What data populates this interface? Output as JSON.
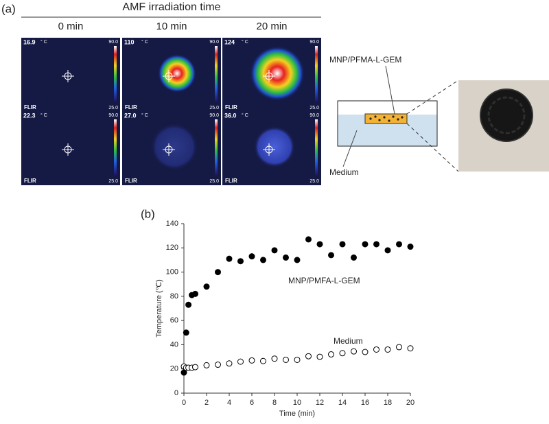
{
  "panel_a": {
    "label": "(a)",
    "header": "AMF irradiation time",
    "columns": [
      "0 min",
      "10 min",
      "20 min"
    ],
    "readings": [
      [
        "16.9",
        "110",
        "124"
      ],
      [
        "22.3",
        "27.0",
        "36.0"
      ]
    ],
    "unit": "° C",
    "scale_max": "90.0",
    "scale_min": "25.0",
    "brand": "FLIR",
    "sample_label": "MNP/PFMA-L-GEM",
    "medium_label": "Medium"
  },
  "chart_data": {
    "type": "scatter",
    "title": "(b)",
    "x_label": "Time (min)",
    "y_label": "Temperature (℃)",
    "xlim": [
      0,
      20
    ],
    "xticks": [
      0,
      2,
      4,
      6,
      8,
      10,
      12,
      14,
      16,
      18,
      20
    ],
    "ylim": [
      0,
      140
    ],
    "yticks": [
      0,
      20,
      40,
      60,
      80,
      100,
      120,
      140
    ],
    "series": [
      {
        "name": "MNP/PMFA-L-GEM",
        "color": "#000000",
        "marker": "filled",
        "x": [
          0,
          0.2,
          0.4,
          0.7,
          1,
          2,
          3,
          4,
          5,
          6,
          7,
          8,
          9,
          10,
          11,
          12,
          13,
          14,
          15,
          16,
          17,
          18,
          19,
          20
        ],
        "values": [
          17,
          50,
          73,
          81,
          82,
          88,
          100,
          111,
          109,
          113,
          110,
          118,
          112,
          110,
          127,
          123,
          114,
          123,
          112,
          123,
          123,
          118,
          123,
          121
        ]
      },
      {
        "name": "Medium",
        "color": "#000000",
        "marker": "open",
        "x": [
          0,
          0.2,
          0.4,
          0.7,
          1,
          2,
          3,
          4,
          5,
          6,
          7,
          8,
          9,
          10,
          11,
          12,
          13,
          14,
          15,
          16,
          17,
          18,
          19,
          20
        ],
        "values": [
          22,
          21,
          21,
          21,
          21.5,
          23,
          23.5,
          24.5,
          26,
          27,
          26.5,
          28.5,
          27.5,
          27.5,
          30.5,
          30,
          32,
          33,
          34.5,
          34,
          36,
          36,
          38,
          37
        ]
      }
    ]
  }
}
